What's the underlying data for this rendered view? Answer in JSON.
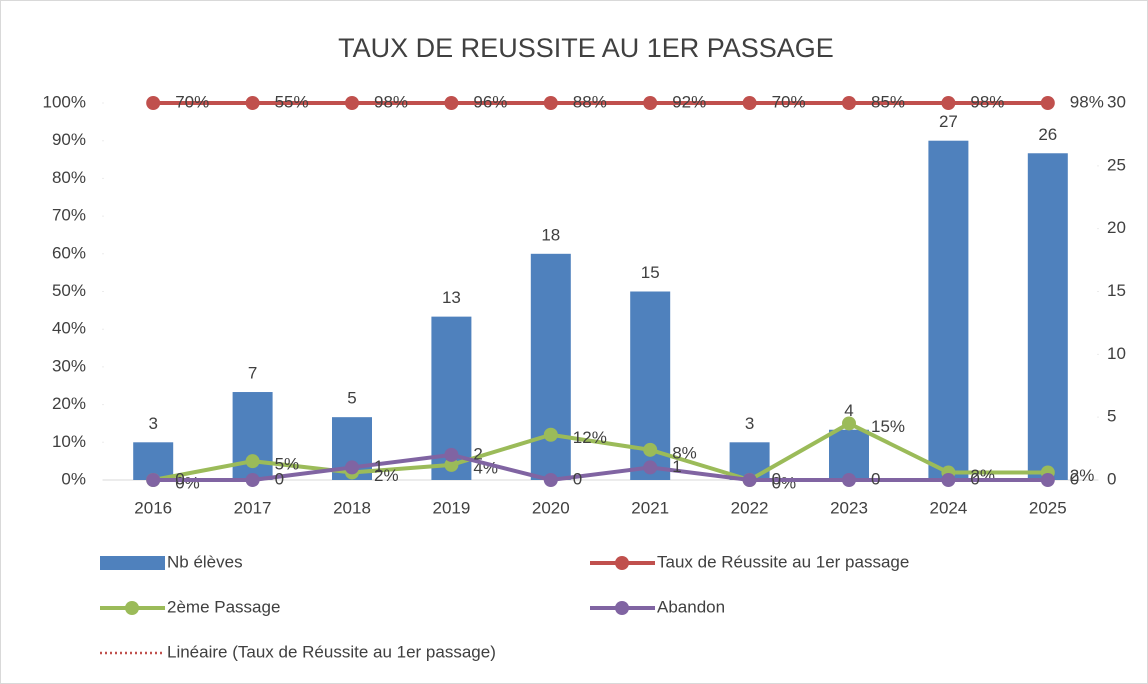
{
  "chart_data": {
    "type": "combo",
    "title": "TAUX DE REUSSITE AU 1ER PASSAGE",
    "categories": [
      "2016",
      "2017",
      "2018",
      "2019",
      "2020",
      "2021",
      "2022",
      "2023",
      "2024",
      "2025"
    ],
    "ylim": [
      0,
      1
    ],
    "yticks": [
      {
        "value": 0,
        "label": "0%"
      },
      {
        "value": 0.1,
        "label": "10%"
      },
      {
        "value": 0.2,
        "label": "20%"
      },
      {
        "value": 0.3,
        "label": "30%"
      },
      {
        "value": 0.4,
        "label": "40%"
      },
      {
        "value": 0.5,
        "label": "50%"
      },
      {
        "value": 0.6,
        "label": "60%"
      },
      {
        "value": 0.7,
        "label": "70%"
      },
      {
        "value": 0.8,
        "label": "80%"
      },
      {
        "value": 0.9,
        "label": "90%"
      },
      {
        "value": 1,
        "label": "100%"
      }
    ],
    "y2lim": [
      0,
      30
    ],
    "y2ticks": [
      0,
      5,
      10,
      15,
      20,
      25,
      30
    ],
    "grid": false,
    "series": [
      {
        "name": "Nb élèves",
        "type": "bar",
        "axis": "y2",
        "color": "#4f81bd",
        "values": [
          3,
          7,
          5,
          13,
          18,
          15,
          3,
          4,
          27,
          26
        ]
      },
      {
        "name": "Taux de Réussite au 1er passage",
        "type": "line",
        "axis": "y2",
        "color": "#c0504d",
        "values": [
          70,
          55,
          98,
          96,
          88,
          92,
          70,
          85,
          98,
          98
        ],
        "value_labels": [
          "70%",
          "55%",
          "98%",
          "96%",
          "88%",
          "92%",
          "70%",
          "85%",
          "98%",
          "98%"
        ]
      },
      {
        "name": "2ème Passage",
        "type": "line",
        "axis": "y",
        "color": "#9bbb59",
        "values": [
          0,
          0.05,
          0.02,
          0.04,
          0.12,
          0.08,
          0,
          0.15,
          0.02,
          0.02
        ],
        "value_labels": [
          "0%",
          "5%",
          "2%",
          "4%",
          "12%",
          "8%",
          "0%",
          "15%",
          "2%",
          "2%"
        ]
      },
      {
        "name": "Abandon",
        "type": "line",
        "axis": "y2",
        "color": "#8064a2",
        "values": [
          0,
          0,
          1,
          2,
          0,
          1,
          0,
          0,
          0,
          0
        ]
      }
    ],
    "trendline": {
      "name": "Linéaire (Taux de Réussite au 1er passage)",
      "color": "#c0504d"
    }
  }
}
